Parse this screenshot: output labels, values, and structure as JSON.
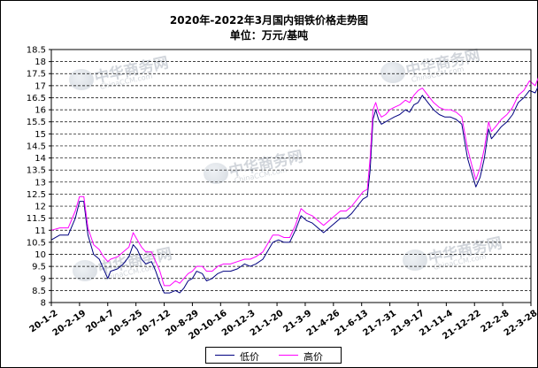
{
  "chart_data": {
    "type": "line",
    "title": "2020年-2022年3月国内钼铁价格走势图",
    "subtitle": "单位：万元/基吨",
    "ylim": [
      8,
      18.5
    ],
    "yticks": [
      "8",
      "8.5",
      "9",
      "9.5",
      "10",
      "10.5",
      "11",
      "11.5",
      "12",
      "12.5",
      "13",
      "13.5",
      "14",
      "14.5",
      "15",
      "15.5",
      "16",
      "16.5",
      "17",
      "17.5",
      "18",
      "18.5"
    ],
    "grid": "horizontal-dashed",
    "legend": "bottom",
    "x_labels": [
      "20-1-2",
      "20-2-19",
      "20-4-7",
      "20-5-25",
      "20-7-12",
      "20-8-29",
      "20-10-16",
      "20-12-3",
      "21-1-20",
      "21-3-9",
      "21-4-26",
      "21-6-13",
      "21-7-31",
      "21-9-17",
      "21-11-4",
      "21-12-22",
      "22-2-8",
      "22-3-28"
    ],
    "series": [
      {
        "name": "低价",
        "color": "#000080",
        "points": [
          [
            0,
            10.6
          ],
          [
            0.3,
            10.8
          ],
          [
            0.6,
            10.8
          ],
          [
            0.85,
            11.5
          ],
          [
            1.0,
            12.2
          ],
          [
            1.15,
            12.2
          ],
          [
            1.3,
            10.8
          ],
          [
            1.5,
            10.0
          ],
          [
            1.7,
            9.8
          ],
          [
            1.85,
            9.4
          ],
          [
            2.0,
            9.0
          ],
          [
            2.1,
            9.3
          ],
          [
            2.35,
            9.4
          ],
          [
            2.55,
            9.6
          ],
          [
            2.75,
            9.9
          ],
          [
            2.9,
            10.4
          ],
          [
            3.05,
            10.2
          ],
          [
            3.2,
            9.8
          ],
          [
            3.35,
            9.6
          ],
          [
            3.55,
            9.7
          ],
          [
            3.7,
            9.3
          ],
          [
            3.85,
            8.8
          ],
          [
            4.0,
            8.4
          ],
          [
            4.2,
            8.4
          ],
          [
            4.4,
            8.5
          ],
          [
            4.55,
            8.4
          ],
          [
            4.7,
            8.6
          ],
          [
            4.85,
            8.9
          ],
          [
            5.0,
            9.0
          ],
          [
            5.15,
            9.3
          ],
          [
            5.35,
            9.2
          ],
          [
            5.5,
            8.9
          ],
          [
            5.7,
            9.0
          ],
          [
            5.9,
            9.2
          ],
          [
            6.1,
            9.3
          ],
          [
            6.35,
            9.3
          ],
          [
            6.6,
            9.4
          ],
          [
            6.85,
            9.6
          ],
          [
            7.05,
            9.5
          ],
          [
            7.25,
            9.6
          ],
          [
            7.5,
            9.8
          ],
          [
            7.7,
            10.2
          ],
          [
            7.85,
            10.5
          ],
          [
            8.05,
            10.6
          ],
          [
            8.25,
            10.5
          ],
          [
            8.45,
            10.5
          ],
          [
            8.65,
            11.0
          ],
          [
            8.85,
            11.6
          ],
          [
            9.05,
            11.4
          ],
          [
            9.25,
            11.3
          ],
          [
            9.45,
            11.1
          ],
          [
            9.65,
            10.9
          ],
          [
            9.85,
            11.1
          ],
          [
            10.05,
            11.3
          ],
          [
            10.25,
            11.5
          ],
          [
            10.45,
            11.5
          ],
          [
            10.65,
            11.7
          ],
          [
            10.85,
            12.0
          ],
          [
            11.05,
            12.3
          ],
          [
            11.2,
            12.4
          ],
          [
            11.3,
            13.5
          ],
          [
            11.4,
            15.6
          ],
          [
            11.5,
            16.0
          ],
          [
            11.6,
            15.6
          ],
          [
            11.7,
            15.4
          ],
          [
            11.85,
            15.5
          ],
          [
            12.0,
            15.6
          ],
          [
            12.15,
            15.7
          ],
          [
            12.35,
            15.8
          ],
          [
            12.55,
            16.0
          ],
          [
            12.7,
            15.9
          ],
          [
            12.85,
            16.2
          ],
          [
            13.0,
            16.3
          ],
          [
            13.15,
            16.6
          ],
          [
            13.35,
            16.3
          ],
          [
            13.55,
            16.0
          ],
          [
            13.75,
            15.8
          ],
          [
            13.95,
            15.7
          ],
          [
            14.15,
            15.7
          ],
          [
            14.35,
            15.6
          ],
          [
            14.55,
            15.4
          ],
          [
            14.75,
            14.0
          ],
          [
            14.95,
            13.2
          ],
          [
            15.05,
            12.8
          ],
          [
            15.2,
            13.2
          ],
          [
            15.35,
            14.0
          ],
          [
            15.5,
            15.2
          ],
          [
            15.6,
            14.8
          ],
          [
            15.75,
            15.0
          ],
          [
            15.95,
            15.3
          ],
          [
            16.15,
            15.5
          ],
          [
            16.35,
            15.8
          ],
          [
            16.55,
            16.3
          ],
          [
            16.75,
            16.5
          ],
          [
            16.95,
            16.8
          ],
          [
            17.15,
            16.7
          ],
          [
            17.35,
            17.2
          ],
          [
            17.55,
            17.6
          ],
          [
            17.8,
            17.6
          ]
        ]
      },
      {
        "name": "高价",
        "color": "#ff00ff",
        "points": [
          [
            0,
            11.0
          ],
          [
            0.3,
            11.1
          ],
          [
            0.6,
            11.1
          ],
          [
            0.85,
            11.8
          ],
          [
            1.0,
            12.4
          ],
          [
            1.15,
            12.4
          ],
          [
            1.3,
            11.1
          ],
          [
            1.5,
            10.4
          ],
          [
            1.7,
            10.2
          ],
          [
            1.85,
            9.9
          ],
          [
            2.0,
            9.7
          ],
          [
            2.1,
            9.8
          ],
          [
            2.35,
            9.9
          ],
          [
            2.55,
            10.1
          ],
          [
            2.75,
            10.3
          ],
          [
            2.9,
            10.9
          ],
          [
            3.05,
            10.6
          ],
          [
            3.2,
            10.3
          ],
          [
            3.35,
            10.1
          ],
          [
            3.55,
            10.1
          ],
          [
            3.7,
            9.7
          ],
          [
            3.85,
            9.3
          ],
          [
            4.0,
            8.7
          ],
          [
            4.2,
            8.7
          ],
          [
            4.4,
            8.9
          ],
          [
            4.55,
            8.8
          ],
          [
            4.7,
            9.0
          ],
          [
            4.85,
            9.2
          ],
          [
            5.0,
            9.3
          ],
          [
            5.15,
            9.5
          ],
          [
            5.35,
            9.5
          ],
          [
            5.5,
            9.3
          ],
          [
            5.7,
            9.3
          ],
          [
            5.9,
            9.5
          ],
          [
            6.1,
            9.6
          ],
          [
            6.35,
            9.6
          ],
          [
            6.6,
            9.7
          ],
          [
            6.85,
            9.8
          ],
          [
            7.05,
            9.8
          ],
          [
            7.25,
            9.9
          ],
          [
            7.5,
            10.1
          ],
          [
            7.7,
            10.5
          ],
          [
            7.85,
            10.8
          ],
          [
            8.05,
            10.8
          ],
          [
            8.25,
            10.7
          ],
          [
            8.45,
            10.7
          ],
          [
            8.65,
            11.2
          ],
          [
            8.85,
            11.9
          ],
          [
            9.05,
            11.7
          ],
          [
            9.25,
            11.6
          ],
          [
            9.45,
            11.4
          ],
          [
            9.65,
            11.2
          ],
          [
            9.85,
            11.4
          ],
          [
            10.05,
            11.6
          ],
          [
            10.25,
            11.8
          ],
          [
            10.45,
            11.8
          ],
          [
            10.65,
            12.0
          ],
          [
            10.85,
            12.3
          ],
          [
            11.05,
            12.6
          ],
          [
            11.2,
            12.7
          ],
          [
            11.3,
            14.0
          ],
          [
            11.4,
            16.0
          ],
          [
            11.5,
            16.3
          ],
          [
            11.6,
            15.9
          ],
          [
            11.7,
            15.7
          ],
          [
            11.85,
            15.8
          ],
          [
            12.0,
            16.0
          ],
          [
            12.15,
            16.1
          ],
          [
            12.35,
            16.2
          ],
          [
            12.55,
            16.4
          ],
          [
            12.7,
            16.3
          ],
          [
            12.85,
            16.6
          ],
          [
            13.0,
            16.8
          ],
          [
            13.15,
            16.9
          ],
          [
            13.35,
            16.6
          ],
          [
            13.55,
            16.3
          ],
          [
            13.75,
            16.1
          ],
          [
            13.95,
            16.0
          ],
          [
            14.15,
            16.0
          ],
          [
            14.35,
            15.9
          ],
          [
            14.55,
            15.7
          ],
          [
            14.75,
            14.4
          ],
          [
            14.95,
            13.5
          ],
          [
            15.05,
            13.1
          ],
          [
            15.2,
            13.6
          ],
          [
            15.35,
            14.4
          ],
          [
            15.5,
            15.5
          ],
          [
            15.6,
            15.1
          ],
          [
            15.75,
            15.3
          ],
          [
            15.95,
            15.6
          ],
          [
            16.15,
            15.8
          ],
          [
            16.35,
            16.1
          ],
          [
            16.55,
            16.6
          ],
          [
            16.75,
            16.8
          ],
          [
            16.95,
            17.2
          ],
          [
            17.15,
            17.0
          ],
          [
            17.35,
            17.6
          ],
          [
            17.55,
            18.0
          ],
          [
            17.8,
            18.0
          ]
        ]
      }
    ]
  },
  "watermark": {
    "text": "中华商务网",
    "subtext": "ChinaCCM.com"
  }
}
